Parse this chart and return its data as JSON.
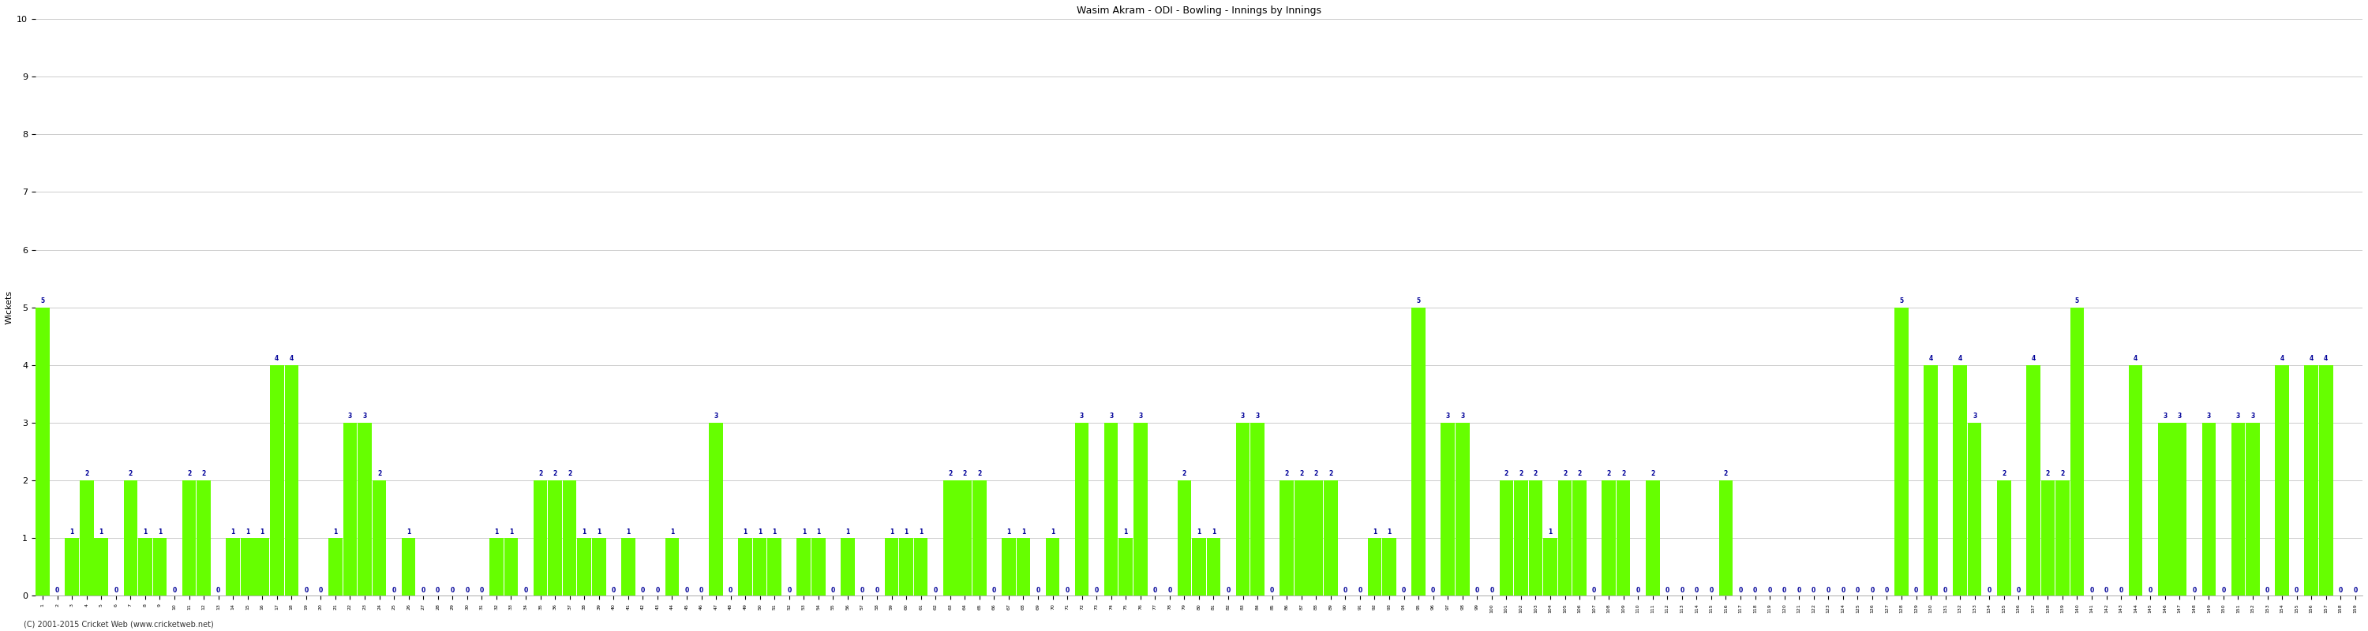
{
  "title": "Wasim Akram - ODI - Bowling - Innings by Innings",
  "ylabel": "Wickets",
  "ylim": [
    0,
    10
  ],
  "yticks": [
    0,
    1,
    2,
    3,
    4,
    5,
    6,
    7,
    8,
    9,
    10
  ],
  "bar_color": "#66ff00",
  "label_color": "#000099",
  "background_color": "#ffffff",
  "grid_color": "#cccccc",
  "footer": "(C) 2001-2015 Cricket Web (www.cricketweb.net)",
  "wickets": [
    5,
    0,
    1,
    2,
    1,
    0,
    2,
    1,
    1,
    0,
    2,
    2,
    0,
    1,
    1,
    1,
    4,
    4,
    0,
    0,
    1,
    3,
    3,
    2,
    0,
    1,
    0,
    0,
    0,
    0,
    0,
    1,
    1,
    0,
    2,
    2,
    2,
    1,
    1,
    0,
    1,
    0,
    0,
    1,
    0,
    0,
    3,
    0,
    1,
    1,
    1,
    0,
    1,
    1,
    0,
    1,
    0,
    0,
    1,
    1,
    1,
    0,
    2,
    2,
    2,
    0,
    1,
    1,
    0,
    1,
    0,
    3,
    0,
    3,
    1,
    3,
    0,
    0,
    2,
    1,
    1,
    0,
    3,
    3,
    0,
    2,
    2,
    2,
    2,
    0,
    0,
    1,
    1,
    0,
    5,
    0,
    3,
    3,
    0,
    0,
    2,
    2,
    2,
    1,
    2,
    2,
    0,
    2,
    2,
    0,
    2,
    0,
    0,
    0,
    0,
    2,
    0,
    0,
    0,
    0,
    0,
    0,
    0,
    0,
    0,
    0,
    0,
    5,
    0,
    4,
    0,
    4,
    3,
    0,
    2,
    0,
    4,
    2,
    2,
    5,
    0,
    0,
    0,
    4,
    0,
    3,
    3,
    0,
    3,
    0,
    3,
    3,
    0,
    4,
    0,
    4,
    4,
    0,
    0
  ],
  "title_fontsize": 9,
  "ylabel_fontsize": 8,
  "ytick_fontsize": 8,
  "xtick_fontsize": 4.5,
  "label_fontsize": 5.5
}
